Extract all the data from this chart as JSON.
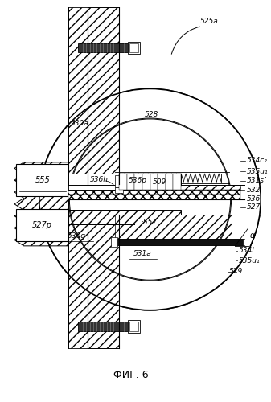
{
  "title": "ФИГ. 6",
  "bg": "#ffffff",
  "lc": "#000000",
  "label_fs": 6.5,
  "caption_fs": 9,
  "right_labels": [
    [
      "534c₂",
      318,
      198
    ],
    [
      "535u₁",
      318,
      212
    ],
    [
      "531s’",
      318,
      224
    ],
    [
      "532",
      318,
      236
    ],
    [
      "536",
      318,
      247
    ],
    [
      "527",
      318,
      258
    ]
  ],
  "bottom_right_labels": [
    [
      "534i",
      308,
      314
    ],
    [
      "535u₁",
      308,
      327
    ],
    [
      "529",
      295,
      341
    ]
  ]
}
